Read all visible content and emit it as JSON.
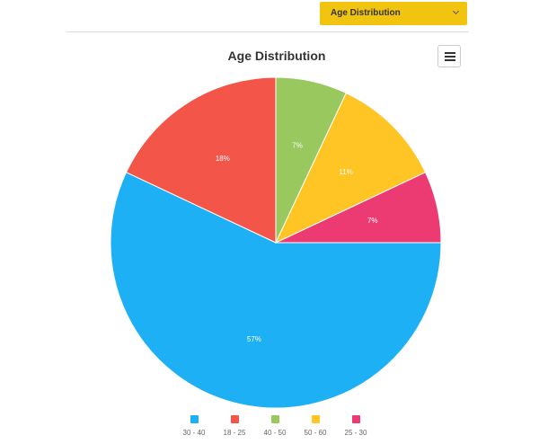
{
  "header": {
    "dropdown_label": "Age Distribution"
  },
  "chart_data": {
    "type": "pie",
    "title": "Age Distribution",
    "legend_position": "bottom",
    "slices": [
      {
        "label": "25 - 30",
        "value": 7,
        "display": "7%",
        "color": "#ec3b73"
      },
      {
        "label": "30 - 40",
        "value": 57,
        "display": "57%",
        "color": "#1eb0f5"
      },
      {
        "label": "18 - 25",
        "value": 18,
        "display": "18%",
        "color": "#f35549"
      },
      {
        "label": "40 - 50",
        "value": 7,
        "display": "7%",
        "color": "#98c85e"
      },
      {
        "label": "50 - 60",
        "value": 11,
        "display": "11%",
        "color": "#ffc524"
      }
    ],
    "legend_order": [
      "30 - 40",
      "18 - 25",
      "40 - 50",
      "50 - 60",
      "25 - 30"
    ]
  },
  "icons": {
    "menu": "hamburger-menu-icon",
    "dropdown": "chevron-down-icon"
  }
}
